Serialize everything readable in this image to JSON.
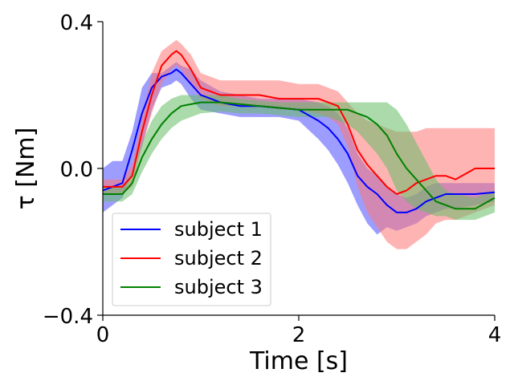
{
  "chart_data": {
    "type": "line",
    "xlabel": "Time [s]",
    "ylabel": "τ [Nm]",
    "xlim": [
      0,
      4
    ],
    "ylim": [
      -0.4,
      0.4
    ],
    "x_ticks": [
      0,
      2,
      4
    ],
    "x_tick_labels": [
      "0",
      "2",
      "4"
    ],
    "y_ticks": [
      -0.4,
      0.0,
      0.4
    ],
    "y_tick_labels": [
      "−0.4",
      "0.0",
      "0.4"
    ],
    "grid": false,
    "legend_position": "lower-left",
    "series": [
      {
        "name": "subject 1",
        "color": "#0000ff",
        "band_color": "#4d4dff",
        "x": [
          0.0,
          0.1,
          0.2,
          0.3,
          0.4,
          0.5,
          0.6,
          0.7,
          0.75,
          0.8,
          0.9,
          1.0,
          1.2,
          1.4,
          1.6,
          1.8,
          2.0,
          2.2,
          2.3,
          2.4,
          2.5,
          2.6,
          2.7,
          2.8,
          2.9,
          3.0,
          3.1,
          3.2,
          3.3,
          3.4,
          3.5,
          3.6,
          3.8,
          4.0
        ],
        "mean": [
          -0.06,
          -0.05,
          -0.04,
          0.05,
          0.15,
          0.22,
          0.25,
          0.26,
          0.27,
          0.26,
          0.23,
          0.2,
          0.18,
          0.17,
          0.17,
          0.165,
          0.16,
          0.13,
          0.11,
          0.08,
          0.04,
          -0.02,
          -0.05,
          -0.07,
          -0.1,
          -0.12,
          -0.12,
          -0.11,
          -0.09,
          -0.08,
          -0.07,
          -0.07,
          -0.07,
          -0.065
        ],
        "upper": [
          0.0,
          0.02,
          0.02,
          0.1,
          0.22,
          0.26,
          0.26,
          0.28,
          0.29,
          0.28,
          0.27,
          0.24,
          0.21,
          0.2,
          0.19,
          0.19,
          0.19,
          0.18,
          0.17,
          0.15,
          0.11,
          0.04,
          0.0,
          -0.02,
          -0.05,
          -0.07,
          -0.08,
          -0.07,
          -0.05,
          -0.04,
          -0.04,
          -0.04,
          -0.04,
          -0.04
        ],
        "lower": [
          -0.12,
          -0.1,
          -0.08,
          -0.01,
          0.06,
          0.16,
          0.22,
          0.23,
          0.24,
          0.23,
          0.19,
          0.16,
          0.15,
          0.14,
          0.14,
          0.14,
          0.13,
          0.08,
          0.05,
          0.01,
          -0.04,
          -0.1,
          -0.15,
          -0.18,
          -0.16,
          -0.17,
          -0.16,
          -0.15,
          -0.13,
          -0.12,
          -0.11,
          -0.11,
          -0.1,
          -0.09
        ]
      },
      {
        "name": "subject 2",
        "color": "#ff0000",
        "band_color": "#ff7777",
        "x": [
          0.0,
          0.1,
          0.2,
          0.3,
          0.4,
          0.5,
          0.6,
          0.7,
          0.75,
          0.8,
          0.9,
          1.0,
          1.2,
          1.4,
          1.6,
          1.8,
          2.0,
          2.2,
          2.3,
          2.4,
          2.5,
          2.6,
          2.7,
          2.8,
          2.9,
          3.0,
          3.1,
          3.2,
          3.3,
          3.4,
          3.5,
          3.6,
          3.8,
          4.0
        ],
        "mean": [
          -0.05,
          -0.05,
          -0.05,
          -0.02,
          0.1,
          0.2,
          0.28,
          0.31,
          0.32,
          0.31,
          0.27,
          0.22,
          0.2,
          0.2,
          0.2,
          0.19,
          0.19,
          0.19,
          0.18,
          0.17,
          0.12,
          0.05,
          0.01,
          -0.02,
          -0.05,
          -0.07,
          -0.06,
          -0.04,
          -0.03,
          -0.02,
          -0.02,
          -0.03,
          0.0,
          0.0
        ],
        "upper": [
          -0.03,
          -0.03,
          -0.03,
          0.01,
          0.14,
          0.26,
          0.32,
          0.34,
          0.35,
          0.34,
          0.31,
          0.26,
          0.24,
          0.24,
          0.24,
          0.24,
          0.23,
          0.23,
          0.22,
          0.21,
          0.18,
          0.15,
          0.13,
          0.12,
          0.11,
          0.1,
          0.1,
          0.1,
          0.11,
          0.11,
          0.11,
          0.11,
          0.11,
          0.11
        ],
        "lower": [
          -0.07,
          -0.07,
          -0.07,
          -0.05,
          0.06,
          0.15,
          0.23,
          0.27,
          0.28,
          0.27,
          0.23,
          0.19,
          0.17,
          0.17,
          0.17,
          0.16,
          0.16,
          0.15,
          0.14,
          0.12,
          0.06,
          -0.05,
          -0.12,
          -0.16,
          -0.2,
          -0.22,
          -0.22,
          -0.2,
          -0.18,
          -0.15,
          -0.14,
          -0.14,
          -0.12,
          -0.1
        ]
      },
      {
        "name": "subject 3",
        "color": "#008000",
        "band_color": "#66bb66",
        "x": [
          0.0,
          0.1,
          0.2,
          0.3,
          0.4,
          0.5,
          0.6,
          0.7,
          0.75,
          0.8,
          0.9,
          1.0,
          1.2,
          1.4,
          1.6,
          1.8,
          2.0,
          2.2,
          2.3,
          2.4,
          2.5,
          2.6,
          2.7,
          2.8,
          2.9,
          3.0,
          3.1,
          3.2,
          3.3,
          3.4,
          3.5,
          3.6,
          3.8,
          4.0
        ],
        "mean": [
          -0.07,
          -0.07,
          -0.07,
          -0.04,
          0.03,
          0.08,
          0.12,
          0.15,
          0.16,
          0.17,
          0.175,
          0.18,
          0.18,
          0.175,
          0.17,
          0.165,
          0.16,
          0.16,
          0.16,
          0.16,
          0.16,
          0.15,
          0.14,
          0.12,
          0.09,
          0.04,
          0.0,
          -0.03,
          -0.06,
          -0.09,
          -0.1,
          -0.11,
          -0.11,
          -0.08
        ],
        "upper": [
          -0.05,
          -0.05,
          -0.05,
          -0.01,
          0.07,
          0.13,
          0.17,
          0.19,
          0.195,
          0.2,
          0.2,
          0.2,
          0.2,
          0.19,
          0.185,
          0.18,
          0.18,
          0.18,
          0.18,
          0.18,
          0.18,
          0.18,
          0.18,
          0.18,
          0.18,
          0.16,
          0.12,
          0.07,
          0.02,
          -0.03,
          -0.06,
          -0.07,
          -0.08,
          -0.06
        ],
        "lower": [
          -0.09,
          -0.09,
          -0.09,
          -0.07,
          -0.01,
          0.04,
          0.08,
          0.11,
          0.12,
          0.13,
          0.14,
          0.15,
          0.155,
          0.15,
          0.15,
          0.145,
          0.14,
          0.14,
          0.14,
          0.13,
          0.12,
          0.1,
          0.07,
          0.04,
          0.0,
          -0.06,
          -0.09,
          -0.11,
          -0.12,
          -0.13,
          -0.13,
          -0.14,
          -0.14,
          -0.12
        ]
      }
    ]
  }
}
